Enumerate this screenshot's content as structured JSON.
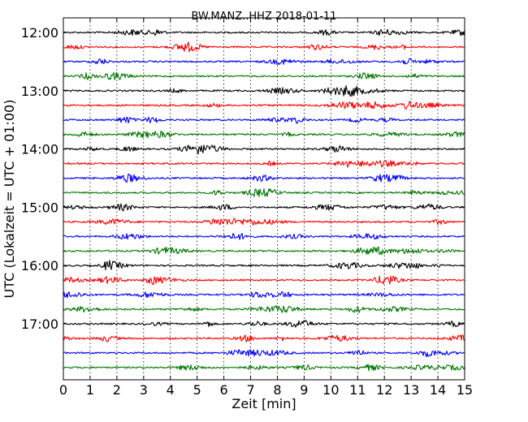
{
  "chart_data": {
    "type": "line",
    "title": "BW.MANZ..HHZ 2018-01-11",
    "xlabel": "Zeit  [min]",
    "ylabel": "UTC (Lokalzeit = UTC + 01:00)",
    "xlim": [
      0,
      15
    ],
    "x_ticks": [
      "0",
      "1",
      "2",
      "3",
      "4",
      "5",
      "6",
      "7",
      "8",
      "9",
      "10",
      "11",
      "12",
      "13",
      "14",
      "15"
    ],
    "y_ticks": [
      "12:00",
      "13:00",
      "14:00",
      "15:00",
      "16:00",
      "17:00"
    ],
    "grid": "vertical dotted",
    "trace_colors": [
      "#000000",
      "#ff0000",
      "#0000ff",
      "#007700"
    ],
    "series": [
      {
        "start": "12:00"
      },
      {
        "start": "12:15"
      },
      {
        "start": "12:30"
      },
      {
        "start": "12:45"
      },
      {
        "start": "13:00"
      },
      {
        "start": "13:15"
      },
      {
        "start": "13:30"
      },
      {
        "start": "13:45"
      },
      {
        "start": "14:00"
      },
      {
        "start": "14:15"
      },
      {
        "start": "14:30"
      },
      {
        "start": "14:45"
      },
      {
        "start": "15:00"
      },
      {
        "start": "15:15"
      },
      {
        "start": "15:30"
      },
      {
        "start": "15:45"
      },
      {
        "start": "16:00"
      },
      {
        "start": "16:15"
      },
      {
        "start": "16:30"
      },
      {
        "start": "16:45"
      },
      {
        "start": "17:00"
      },
      {
        "start": "17:15"
      },
      {
        "start": "17:30"
      },
      {
        "start": "17:45"
      }
    ]
  }
}
